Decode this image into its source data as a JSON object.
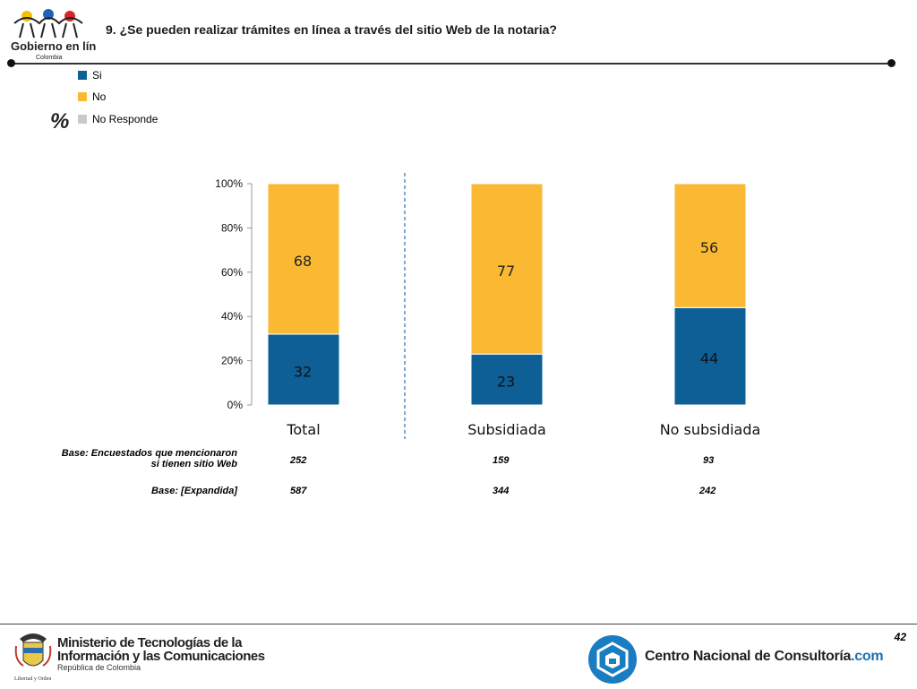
{
  "header": {
    "title": "9. ¿Se pueden realizar trámites en línea a través del sitio Web de la notaria?",
    "logo_text": "Gobierno en línea",
    "logo_subtext": "Colombia"
  },
  "unit_label": "%",
  "legend": [
    {
      "label": "Si",
      "color": "#0d5f96"
    },
    {
      "label": "No",
      "color": "#fbb933"
    },
    {
      "label": "No Responde",
      "color": "#c9c9c9"
    }
  ],
  "chart_data": {
    "type": "bar",
    "stacked": true,
    "categories": [
      "Total",
      "Subsidiada",
      "No subsidiada"
    ],
    "series": [
      {
        "name": "Si",
        "values": [
          32,
          23,
          44
        ],
        "color": "#0d5f96"
      },
      {
        "name": "No",
        "values": [
          68,
          77,
          56
        ],
        "color": "#fbb933"
      },
      {
        "name": "No Responde",
        "values": [
          0,
          0,
          0
        ],
        "color": "#c9c9c9"
      }
    ],
    "yticks": [
      "0%",
      "20%",
      "40%",
      "60%",
      "80%",
      "100%"
    ],
    "ylim": [
      0,
      100
    ],
    "separator_after_category": 0
  },
  "bases": [
    {
      "label_line1": "Base: Encuestados que mencionaron",
      "label_line2": "si tienen sitio Web",
      "values": [
        "252",
        "159",
        "93"
      ]
    },
    {
      "label_line1": "Base: [Expandida]",
      "label_line2": "",
      "values": [
        "587",
        "344",
        "242"
      ]
    }
  ],
  "footer": {
    "page_number": "42",
    "ministry_line1": "Ministerio de Tecnologías de la",
    "ministry_line2": "Información y las Comunicaciones",
    "ministry_line3": "República de Colombia",
    "motto": "Libertad y Orden",
    "cnc_name": "Centro Nacional de Consultoría",
    "cnc_suffix": ".com"
  }
}
